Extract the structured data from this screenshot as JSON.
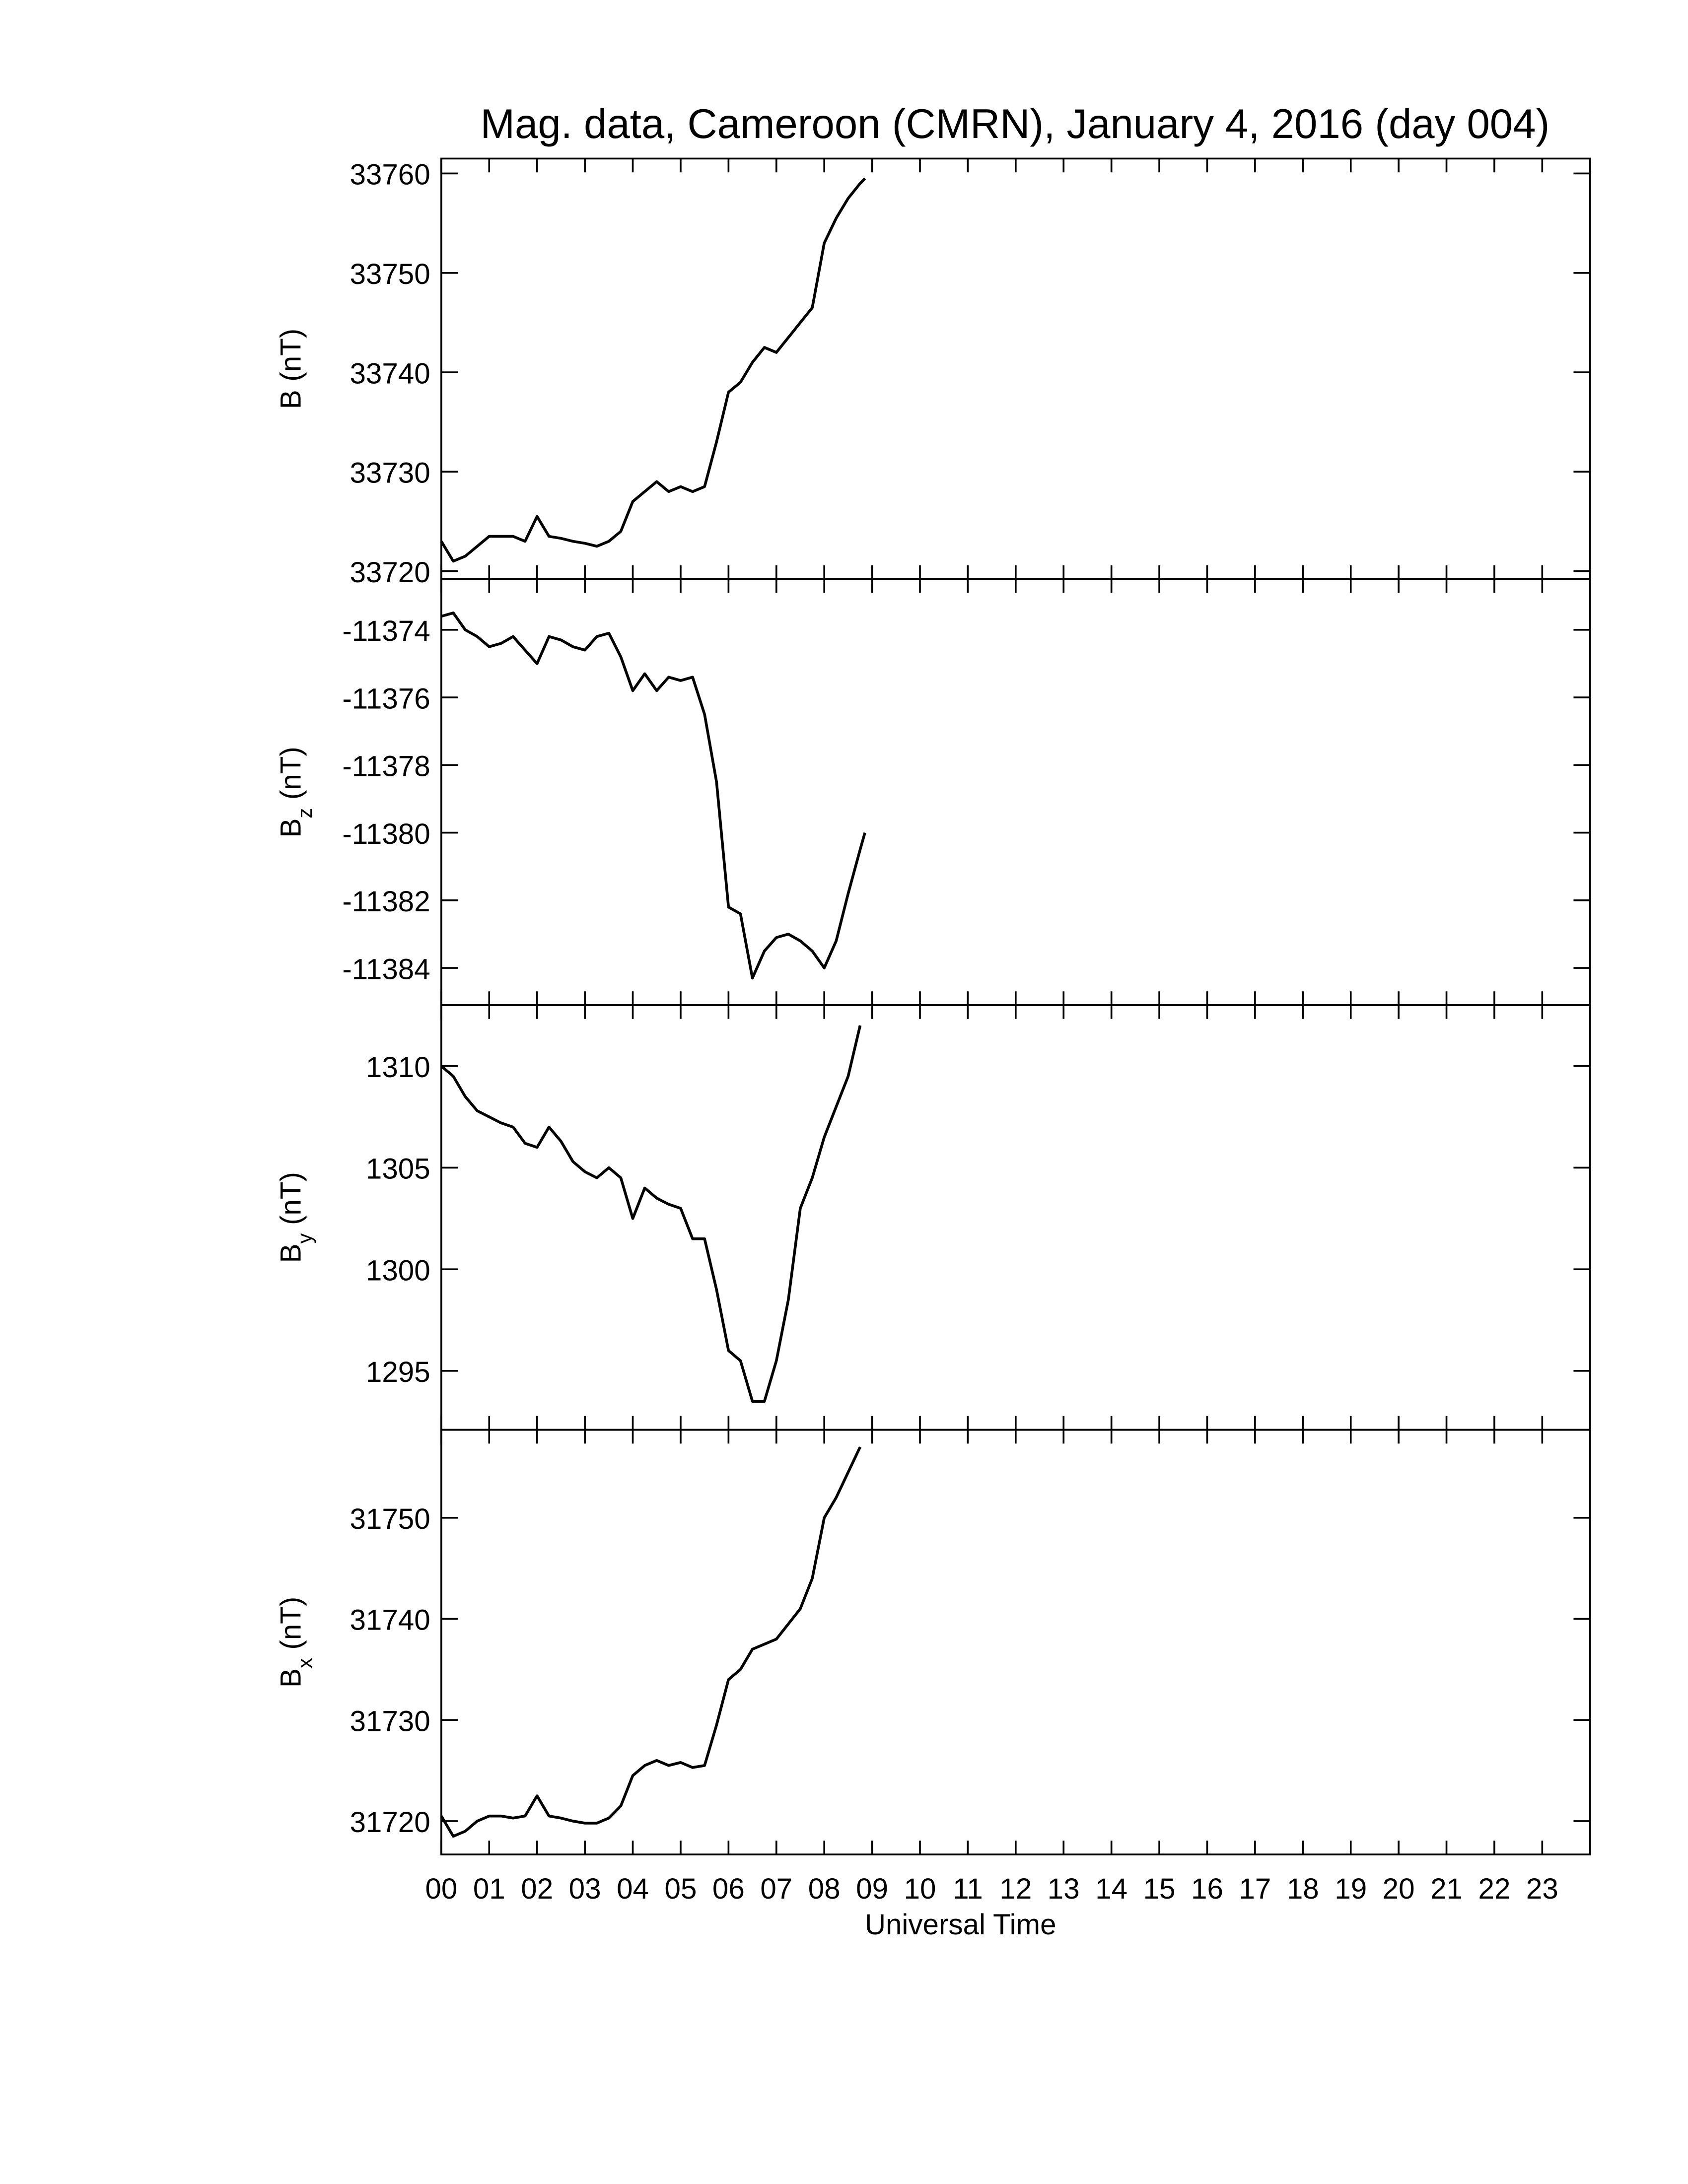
{
  "chart_data": [
    {
      "type": "line",
      "title": "Mag. data, Cameroon (CMRN), January 4, 2016 (day 004)",
      "ylabel": {
        "symbol": "B",
        "unit": "(nT)"
      },
      "color": "#000000",
      "x": [
        0,
        0.25,
        0.5,
        0.75,
        1,
        1.25,
        1.5,
        1.75,
        2,
        2.25,
        2.5,
        2.75,
        3,
        3.25,
        3.5,
        3.75,
        4,
        4.25,
        4.5,
        4.75,
        5,
        5.25,
        5.5,
        5.75,
        6,
        6.25,
        6.5,
        6.75,
        7,
        7.25,
        7.5,
        7.75,
        8,
        8.25,
        8.5,
        8.75,
        8.85
      ],
      "values": [
        33723,
        33721,
        33721.5,
        33722.5,
        33723.5,
        33723.5,
        33723.5,
        33723,
        33725.5,
        33723.5,
        33723.3,
        33723,
        33722.8,
        33722.5,
        33723,
        33724,
        33727,
        33728,
        33729,
        33728,
        33728.5,
        33728,
        33728.5,
        33733,
        33738,
        33739,
        33741,
        33742.5,
        33742,
        33743.5,
        33745,
        33746.5,
        33753,
        33755.5,
        33757.5,
        33759,
        33759.5
      ],
      "xlim": [
        0,
        24
      ],
      "ylim": [
        33719.2,
        33761.5
      ],
      "yticks": [
        33720,
        33730,
        33740,
        33750,
        33760
      ]
    },
    {
      "type": "line",
      "ylabel": {
        "symbol": "B",
        "subscript": "z",
        "unit": "(nT)"
      },
      "color": "#000000",
      "x": [
        0,
        0.25,
        0.5,
        0.75,
        1,
        1.25,
        1.5,
        1.75,
        2,
        2.25,
        2.5,
        2.75,
        3,
        3.25,
        3.5,
        3.75,
        4,
        4.25,
        4.5,
        4.75,
        5,
        5.25,
        5.5,
        5.75,
        6,
        6.25,
        6.5,
        6.75,
        7,
        7.25,
        7.5,
        7.75,
        8,
        8.25,
        8.5,
        8.75,
        8.85
      ],
      "values": [
        -11373.6,
        -11373.5,
        -11374,
        -11374.2,
        -11374.5,
        -11374.4,
        -11374.2,
        -11374.6,
        -11375,
        -11374.2,
        -11374.3,
        -11374.5,
        -11374.6,
        -11374.2,
        -11374.1,
        -11374.8,
        -11375.8,
        -11375.3,
        -11375.8,
        -11375.4,
        -11375.5,
        -11375.4,
        -11376.5,
        -11378.5,
        -11382.2,
        -11382.4,
        -11384.3,
        -11383.5,
        -11383.1,
        -11383,
        -11383.2,
        -11383.5,
        -11384,
        -11383.2,
        -11381.8,
        -11380.5,
        -11380
      ],
      "xlim": [
        0,
        24
      ],
      "ylim": [
        -11385.1,
        -11372.5
      ],
      "yticks": [
        -11384,
        -11382,
        -11380,
        -11378,
        -11376,
        -11374
      ]
    },
    {
      "type": "line",
      "ylabel": {
        "symbol": "B",
        "subscript": "y",
        "unit": "(nT)"
      },
      "color": "#000000",
      "x": [
        0,
        0.25,
        0.5,
        0.75,
        1,
        1.25,
        1.5,
        1.75,
        2,
        2.25,
        2.5,
        2.75,
        3,
        3.25,
        3.5,
        3.75,
        4,
        4.25,
        4.5,
        4.75,
        5,
        5.25,
        5.5,
        5.75,
        6,
        6.25,
        6.5,
        6.75,
        7,
        7.25,
        7.5,
        7.75,
        8,
        8.25,
        8.5,
        8.75
      ],
      "values": [
        1310,
        1309.5,
        1308.5,
        1307.8,
        1307.5,
        1307.2,
        1307,
        1306.2,
        1306,
        1307,
        1306.3,
        1305.3,
        1304.8,
        1304.5,
        1305,
        1304.5,
        1302.5,
        1304,
        1303.5,
        1303.2,
        1303,
        1301.5,
        1301.5,
        1299,
        1296,
        1295.5,
        1293.5,
        1293.5,
        1295.5,
        1298.5,
        1303,
        1304.5,
        1306.5,
        1308,
        1309.5,
        1312
      ],
      "xlim": [
        0,
        24
      ],
      "ylim": [
        1292.1,
        1313
      ],
      "yticks": [
        1295,
        1300,
        1305,
        1310
      ]
    },
    {
      "type": "line",
      "ylabel": {
        "symbol": "B",
        "subscript": "x",
        "unit": "(nT)"
      },
      "color": "#000000",
      "xlabel": "Universal Time",
      "x": [
        0,
        0.25,
        0.5,
        0.75,
        1,
        1.25,
        1.5,
        1.75,
        2,
        2.25,
        2.5,
        2.75,
        3,
        3.25,
        3.5,
        3.75,
        4,
        4.25,
        4.5,
        4.75,
        5,
        5.25,
        5.5,
        5.75,
        6,
        6.25,
        6.5,
        6.75,
        7,
        7.25,
        7.5,
        7.75,
        8,
        8.25,
        8.5,
        8.75
      ],
      "values": [
        31720.5,
        31718.5,
        31719,
        31720,
        31720.5,
        31720.5,
        31720.3,
        31720.5,
        31722.5,
        31720.5,
        31720.3,
        31720,
        31719.8,
        31719.8,
        31720.3,
        31721.5,
        31724.5,
        31725.5,
        31726,
        31725.5,
        31725.8,
        31725.3,
        31725.5,
        31729.5,
        31734,
        31735,
        31737,
        31737.5,
        31738,
        31739.5,
        31741,
        31744,
        31750,
        31752,
        31754.5,
        31757
      ],
      "xlim": [
        0,
        24
      ],
      "ylim": [
        31716.7,
        31758.7
      ],
      "yticks": [
        31720,
        31730,
        31740,
        31750
      ],
      "xticks": [
        {
          "value": 0,
          "label": "00"
        },
        {
          "value": 1,
          "label": "01"
        },
        {
          "value": 2,
          "label": "02"
        },
        {
          "value": 3,
          "label": "03"
        },
        {
          "value": 4,
          "label": "04"
        },
        {
          "value": 5,
          "label": "05"
        },
        {
          "value": 6,
          "label": "06"
        },
        {
          "value": 7,
          "label": "07"
        },
        {
          "value": 8,
          "label": "08"
        },
        {
          "value": 9,
          "label": "09"
        },
        {
          "value": 10,
          "label": "10"
        },
        {
          "value": 11,
          "label": "11"
        },
        {
          "value": 12,
          "label": "12"
        },
        {
          "value": 13,
          "label": "13"
        },
        {
          "value": 14,
          "label": "14"
        },
        {
          "value": 15,
          "label": "15"
        },
        {
          "value": 16,
          "label": "16"
        },
        {
          "value": 17,
          "label": "17"
        },
        {
          "value": 18,
          "label": "18"
        },
        {
          "value": 19,
          "label": "19"
        },
        {
          "value": 20,
          "label": "20"
        },
        {
          "value": 21,
          "label": "21"
        },
        {
          "value": 22,
          "label": "22"
        },
        {
          "value": 23,
          "label": "23"
        }
      ]
    }
  ]
}
